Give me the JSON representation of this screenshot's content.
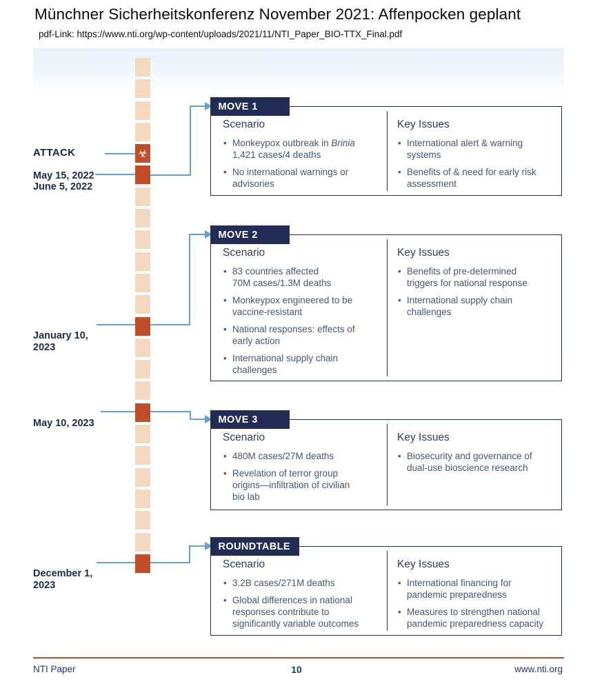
{
  "page": {
    "title": "Münchner Sicherheitskonferenz November 2021: Affenpocken geplant",
    "pdf_link": "pdf-Link: https://www.nti.org/wp-content/uploads/2021/11/NTI_Paper_BIO-TTX_Final.pdf"
  },
  "timeline": {
    "cell_count": 24,
    "highlighted": [
      4,
      5,
      12,
      16,
      23
    ],
    "attack_index": 4,
    "attack_icon": "☣",
    "events": [
      {
        "kicker": "ATTACK",
        "date": "May 15, 2022"
      },
      {
        "date": "June 5, 2022"
      },
      {
        "date": "January 10,\n2023"
      },
      {
        "date": "May 10, 2023"
      },
      {
        "date": "December 1,\n2023"
      }
    ]
  },
  "moves": [
    {
      "header": "MOVE 1",
      "scenario_title": "Scenario",
      "key_issues_title": "Key Issues",
      "scenario": [
        {
          "pre": "Monkeypox outbreak in ",
          "italic": "Brinia",
          "line2": "1,421 cases/4 deaths"
        },
        "No international warnings or\nadvisories"
      ],
      "key_issues": [
        "International alert & warning\nsystems",
        "Benefits of & need for early risk\nassessment"
      ]
    },
    {
      "header": "MOVE 2",
      "scenario_title": "Scenario",
      "key_issues_title": "Key Issues",
      "scenario": [
        "83 countries affected\n70M cases/1.3M deaths",
        "Monkeypox engineered to be\nvaccine-resistant",
        "National responses: effects of\nearly action",
        "International supply chain\nchallenges"
      ],
      "key_issues": [
        "Benefits of pre-determined\ntriggers for national response",
        "International supply chain\nchallenges"
      ]
    },
    {
      "header": "MOVE 3",
      "scenario_title": "Scenario",
      "key_issues_title": "Key Issues",
      "scenario": [
        "480M cases/27M deaths",
        "Revelation of terror group\norigins—infiltration of civilian\nbio lab"
      ],
      "key_issues": [
        "Biosecurity and governance of\ndual-use bioscience research"
      ]
    },
    {
      "header": "ROUNDTABLE",
      "scenario_title": "Scenario",
      "key_issues_title": "Key Issues",
      "scenario": [
        "3.2B cases/271M deaths",
        "Global differences in national\nresponses contribute to\nsignificantly variable outcomes"
      ],
      "key_issues": [
        "International financing for\npandemic preparedness",
        "Measures to strengthen national\npandemic preparedness capacity"
      ]
    }
  ],
  "footer": {
    "left": "NTI Paper",
    "page_number": "10",
    "right": "www.nti.org"
  },
  "colors": {
    "navy": "#232c54",
    "orange": "#be4f2a",
    "beige": "#f2d9bf",
    "connector_blue": "#60a1d7",
    "rule_red": "#c2502c"
  }
}
